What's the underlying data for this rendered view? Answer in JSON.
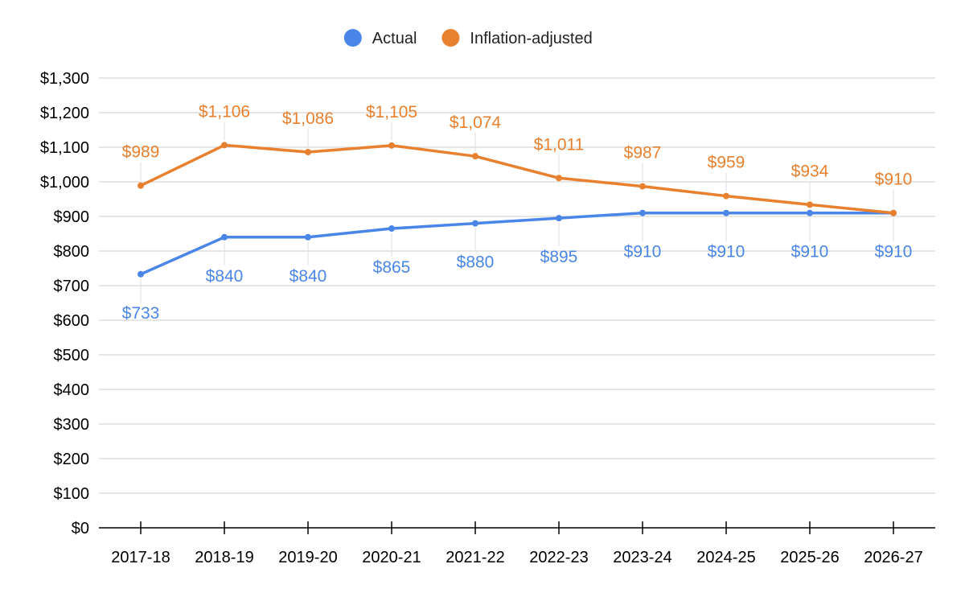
{
  "chart_data": {
    "type": "line",
    "categories": [
      "2017-18",
      "2018-19",
      "2019-20",
      "2020-21",
      "2021-22",
      "2022-23",
      "2023-24",
      "2024-25",
      "2025-26",
      "2026-27"
    ],
    "series": [
      {
        "name": "Actual",
        "color": "#4a86e8",
        "values": [
          733,
          840,
          840,
          865,
          880,
          895,
          910,
          910,
          910,
          910
        ],
        "data_labels": [
          "$733",
          "$840",
          "$840",
          "$865",
          "$880",
          "$895",
          "$910",
          "$910",
          "$910",
          "$910"
        ]
      },
      {
        "name": "Inflation-adjusted",
        "color": "#e8812f",
        "values": [
          989,
          1106,
          1086,
          1105,
          1074,
          1011,
          987,
          959,
          934,
          910
        ],
        "data_labels": [
          "$989",
          "$1,106",
          "$1,086",
          "$1,105",
          "$1,074",
          "$1,011",
          "$987",
          "$959",
          "$934",
          "$910"
        ]
      }
    ],
    "ylim": [
      0,
      1300
    ],
    "y_ticks": [
      0,
      100,
      200,
      300,
      400,
      500,
      600,
      700,
      800,
      900,
      1000,
      1100,
      1200,
      1300
    ],
    "y_tick_labels": [
      "$0",
      "$100",
      "$200",
      "$300",
      "$400",
      "$500",
      "$600",
      "$700",
      "$800",
      "$900",
      "$1,000",
      "$1,100",
      "$1,200",
      "$1,300"
    ],
    "grid": true,
    "legend_position": "top-center",
    "title": "",
    "xlabel": "",
    "ylabel": ""
  }
}
